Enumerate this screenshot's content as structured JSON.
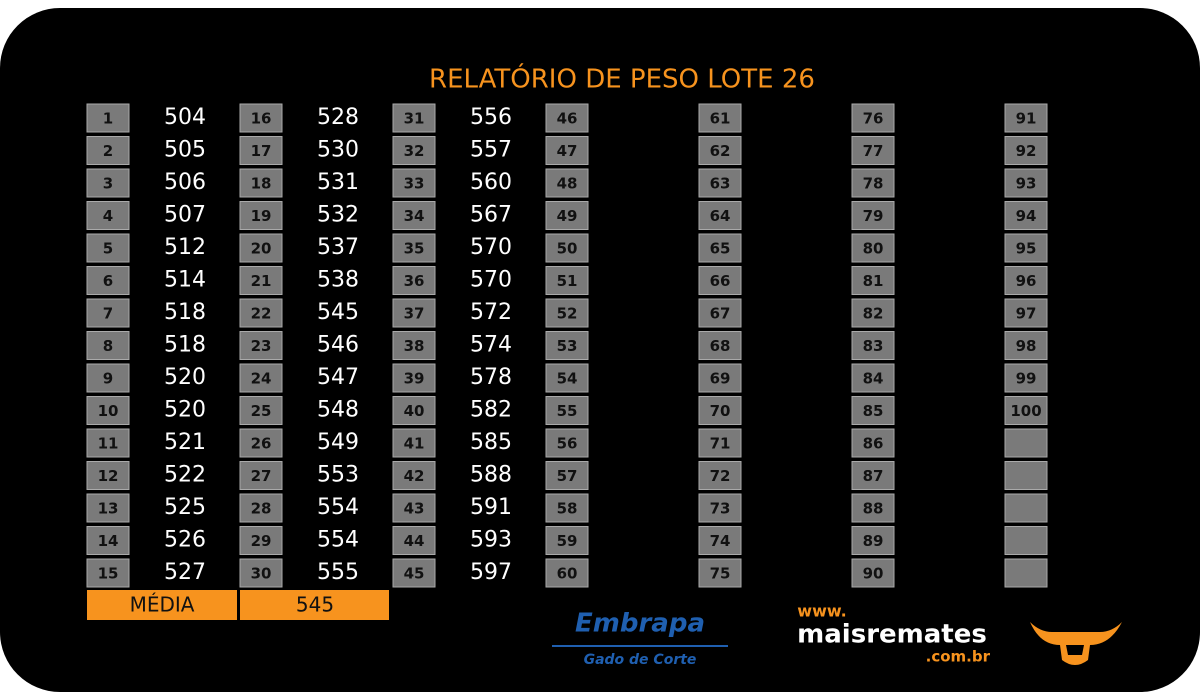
{
  "title": "RELATÓRIO DE PESO LOTE 26",
  "groups": [
    {
      "numbers": [
        1,
        2,
        3,
        4,
        5,
        6,
        7,
        8,
        9,
        10,
        11,
        12,
        13,
        14,
        15
      ],
      "weights": [
        504,
        505,
        506,
        507,
        512,
        514,
        518,
        518,
        520,
        520,
        521,
        522,
        525,
        526,
        527
      ]
    },
    {
      "numbers": [
        16,
        17,
        18,
        19,
        20,
        21,
        22,
        23,
        24,
        25,
        26,
        27,
        28,
        29,
        30
      ],
      "weights": [
        528,
        530,
        531,
        532,
        537,
        538,
        545,
        546,
        547,
        548,
        549,
        553,
        554,
        554,
        555
      ]
    },
    {
      "numbers": [
        31,
        32,
        33,
        34,
        35,
        36,
        37,
        38,
        39,
        40,
        41,
        42,
        43,
        44,
        45
      ],
      "weights": [
        556,
        557,
        560,
        567,
        570,
        570,
        572,
        574,
        578,
        582,
        585,
        588,
        591,
        593,
        597
      ]
    },
    {
      "numbers": [
        46,
        47,
        48,
        49,
        50,
        51,
        52,
        53,
        54,
        55,
        56,
        57,
        58,
        59,
        60
      ]
    },
    {
      "numbers": [
        61,
        62,
        63,
        64,
        65,
        66,
        67,
        68,
        69,
        70,
        71,
        72,
        73,
        74,
        75
      ]
    },
    {
      "numbers": [
        76,
        77,
        78,
        79,
        80,
        81,
        82,
        83,
        84,
        85,
        86,
        87,
        88,
        89,
        90
      ]
    },
    {
      "numbers": [
        91,
        92,
        93,
        94,
        95,
        96,
        97,
        98,
        99,
        100
      ]
    }
  ],
  "average": {
    "label": "MÉDIA",
    "value": 545
  },
  "logos": {
    "embrapa": "Embrapa",
    "embrapa_sub": "Gado de Corte",
    "site_prefix": "www.",
    "site_name": "maisremates",
    "site_suffix": ".com.br"
  }
}
